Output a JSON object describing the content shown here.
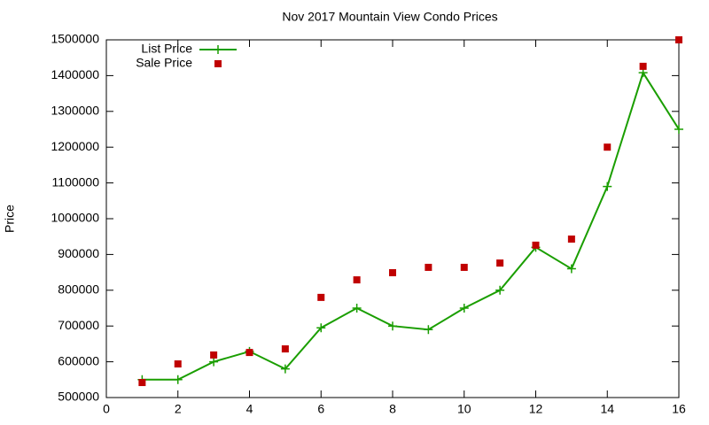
{
  "chart_data": {
    "type": "line",
    "title": "Nov 2017 Mountain View Condo Prices",
    "y_label": "Price",
    "x": [
      1,
      2,
      3,
      4,
      5,
      6,
      7,
      8,
      9,
      10,
      11,
      12,
      13,
      14,
      15,
      16
    ],
    "series": [
      {
        "name": "List Price",
        "color": "#1a9e00",
        "style": "linespoints",
        "marker": "plus",
        "values": [
          550000,
          550000,
          600000,
          629000,
          580000,
          695000,
          750000,
          700000,
          690000,
          750000,
          800000,
          920000,
          860000,
          1090000,
          1408000,
          1250000
        ]
      },
      {
        "name": "Sale Price",
        "color": "#c00000",
        "style": "points",
        "marker": "square",
        "values": [
          542000,
          594000,
          619000,
          626000,
          636000,
          780000,
          829000,
          849000,
          864000,
          864000,
          876000,
          926000,
          943000,
          1200000,
          1426000,
          1500000
        ]
      }
    ],
    "xlim": [
      0,
      16
    ],
    "xticks": [
      0,
      2,
      4,
      6,
      8,
      10,
      12,
      14,
      16
    ],
    "ylim": [
      500000,
      1500000
    ],
    "yticks": [
      500000,
      600000,
      700000,
      800000,
      900000,
      1000000,
      1100000,
      1200000,
      1300000,
      1400000,
      1500000
    ],
    "grid": false,
    "legend_position": "top-left"
  }
}
